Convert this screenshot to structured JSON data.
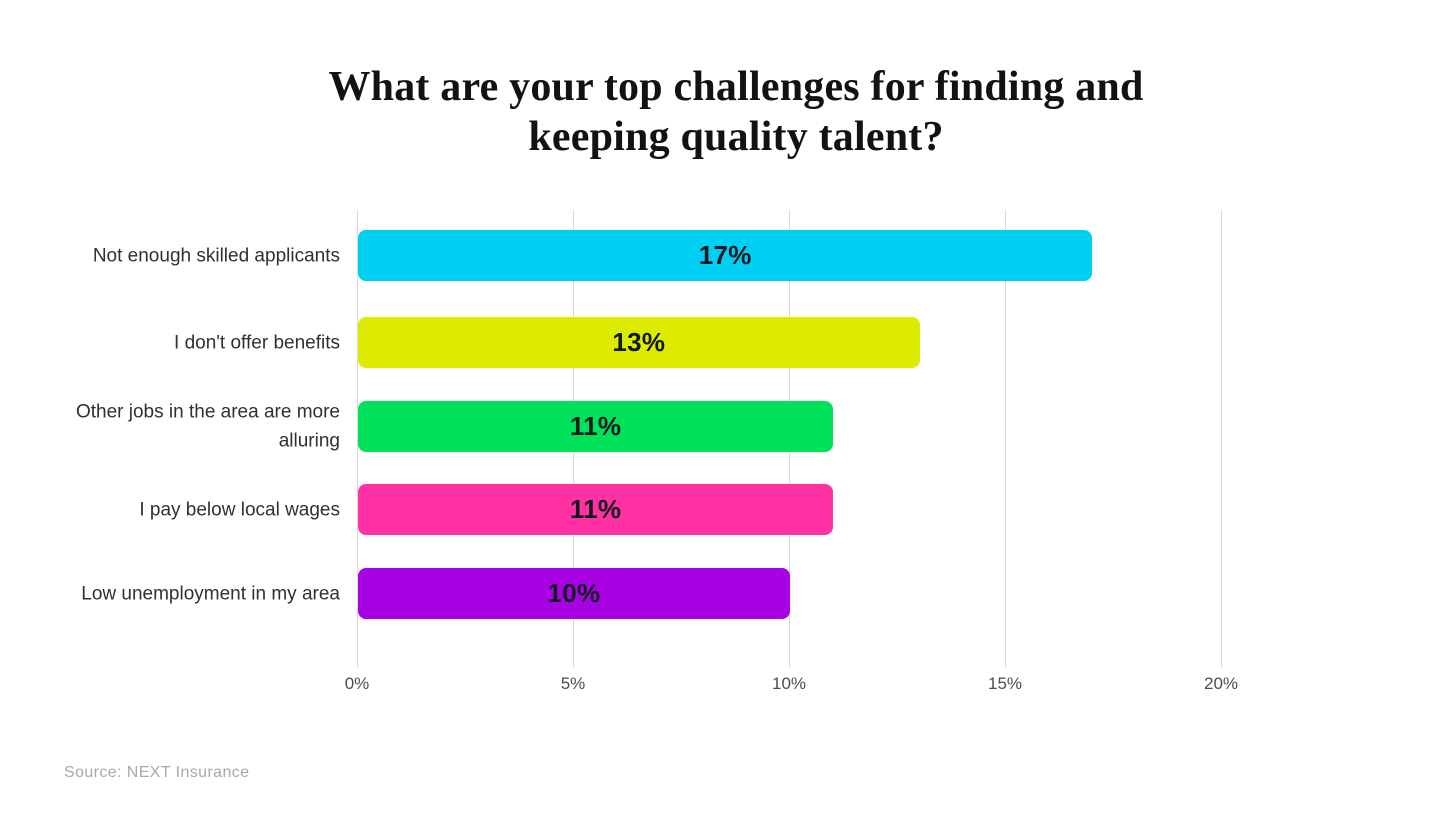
{
  "title": "What are your top challenges for finding and keeping quality talent?",
  "source": "Source: NEXT Insurance",
  "chart_data": {
    "type": "bar",
    "orientation": "horizontal",
    "title": "What are your top challenges for finding and keeping quality talent?",
    "categories": [
      "Not enough skilled applicants",
      "I don't offer benefits",
      "Other jobs in the area are more alluring",
      "I pay below local wages",
      "Low unemployment in my area"
    ],
    "values": [
      17,
      13,
      11,
      11,
      10
    ],
    "value_labels": [
      "17%",
      "13%",
      "11%",
      "11%",
      "10%"
    ],
    "bar_colors": [
      "#00CFF4",
      "#DCEB00",
      "#00E25A",
      "#FF31A3",
      "#A801E4"
    ],
    "x_ticks": [
      "0%",
      "5%",
      "10%",
      "15%",
      "20%"
    ],
    "xlim": [
      0,
      20
    ],
    "xlabel": "",
    "ylabel": "",
    "grid": "vertical-only",
    "gridline_color": "#d9d9d9",
    "legend": "none",
    "value_label_color": "#101820",
    "background_color": "#ffffff"
  }
}
